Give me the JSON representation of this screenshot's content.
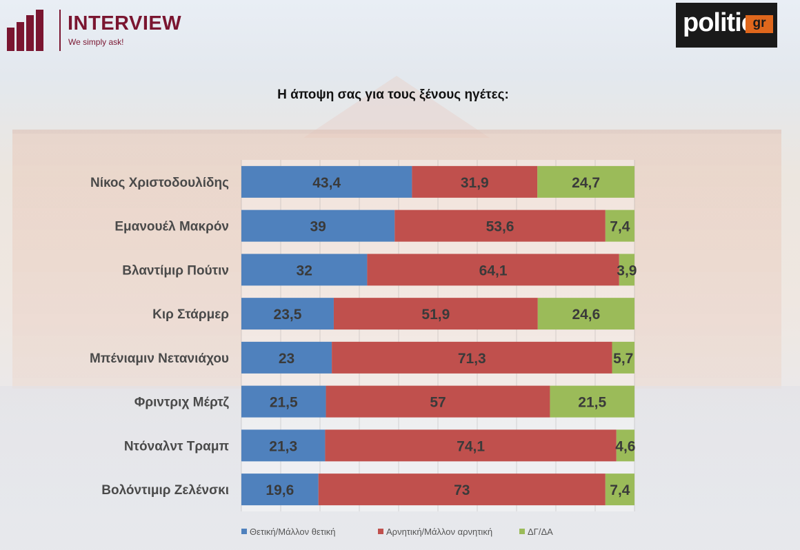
{
  "header": {
    "brand_name": "INTERVIEW",
    "brand_tagline": "We simply ask!",
    "partner_logo_word": "politic",
    "partner_logo_suffix": "gr"
  },
  "colors": {
    "positive": "#4f81bd",
    "negative": "#c0504d",
    "unknown": "#9bbb59",
    "brand": "#7a1530",
    "partner_accent": "#e0671c"
  },
  "chart_data": {
    "type": "bar",
    "orientation": "horizontal",
    "stacked": true,
    "title": "Η άποψη σας για τους ξένους ηγέτες:",
    "categories": [
      "Νίκος Χριστοδουλίδης",
      "Εμανουέλ Μακρόν",
      "Βλαντίμιρ Πούτιν",
      "Κιρ Στάρμερ",
      "Μπένιαμιν Νετανιάχου",
      "Φριντριχ Μέρτζ",
      "Ντόναλντ Τραμπ",
      "Βολόντιμιρ Ζελένσκι"
    ],
    "series": [
      {
        "name": "Θετική/Μάλλον θετική",
        "color": "#4f81bd",
        "values": [
          43.4,
          39,
          32,
          23.5,
          23,
          21.5,
          21.3,
          19.6
        ],
        "labels": [
          "43,4",
          "39",
          "32",
          "23,5",
          "23",
          "21,5",
          "21,3",
          "19,6"
        ]
      },
      {
        "name": "Αρνητική/Μάλλον αρνητική",
        "color": "#c0504d",
        "values": [
          31.9,
          53.6,
          64.1,
          51.9,
          71.3,
          57,
          74.1,
          73
        ],
        "labels": [
          "31,9",
          "53,6",
          "64,1",
          "51,9",
          "71,3",
          "57",
          "74,1",
          "73"
        ]
      },
      {
        "name": "ΔΓ/ΔΑ",
        "color": "#9bbb59",
        "values": [
          24.7,
          7.4,
          3.9,
          24.6,
          5.7,
          21.5,
          4.6,
          7.4
        ],
        "labels": [
          "24,7",
          "7,4",
          "3,9",
          "24,6",
          "5,7",
          "21,5",
          "4,6",
          "7,4"
        ]
      }
    ],
    "xlim": [
      0,
      100
    ],
    "legend_position": "bottom",
    "grid": true
  }
}
